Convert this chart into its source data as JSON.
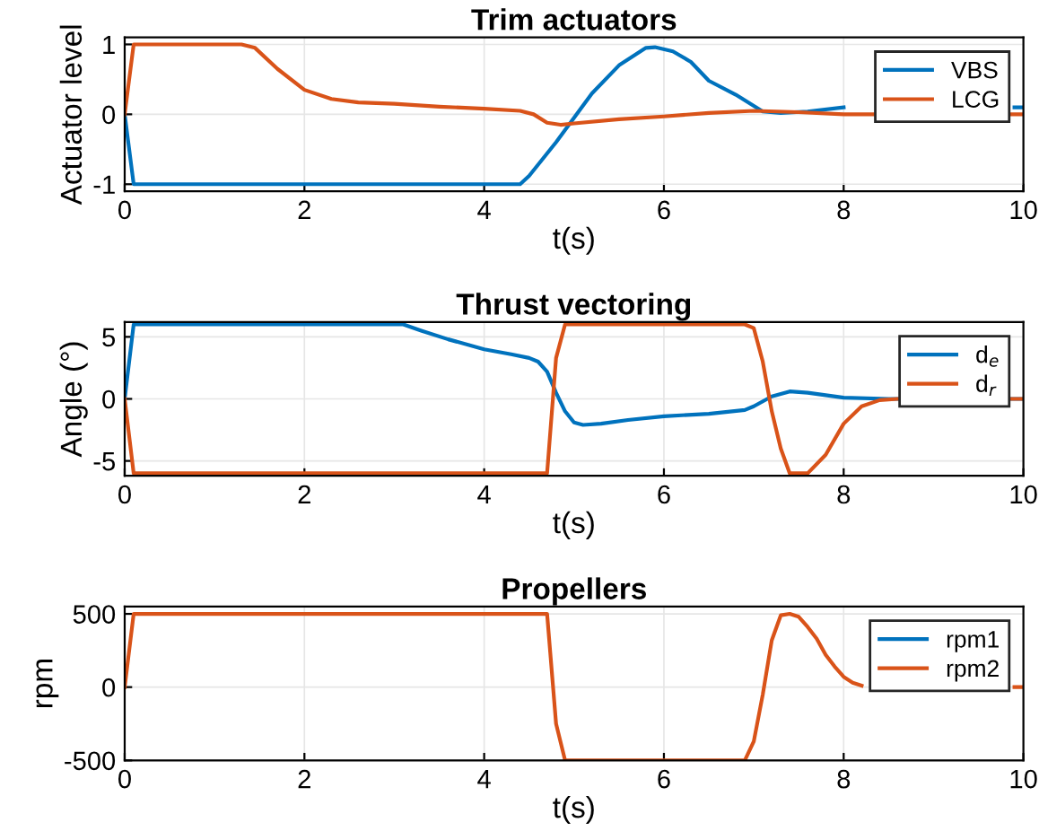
{
  "chart_data": [
    {
      "type": "line",
      "title": "Trim actuators",
      "xlabel": "t(s)",
      "ylabel": "Actuator level",
      "xlim": [
        0,
        10
      ],
      "ylim": [
        -1.1,
        1.1
      ],
      "xticks": [
        0,
        2,
        4,
        6,
        8,
        10
      ],
      "yticks": [
        -1,
        0,
        1
      ],
      "grid": true,
      "legend": "top right",
      "line_style": "solid",
      "series": [
        {
          "name": "VBS",
          "color": "#0072bd",
          "x": [
            0,
            0.1,
            4.4,
            4.5,
            4.8,
            5.0,
            5.2,
            5.5,
            5.8,
            5.9,
            6.1,
            6.3,
            6.5,
            6.8,
            7.1,
            7.3,
            7.6,
            8,
            8.5,
            9,
            9.5,
            9.9,
            10
          ],
          "values": [
            0,
            -1,
            -1,
            -0.88,
            -0.4,
            -0.05,
            0.3,
            0.7,
            0.95,
            0.96,
            0.9,
            0.75,
            0.48,
            0.28,
            0.04,
            0.02,
            0.04,
            0.1,
            null,
            null,
            null,
            0.1,
            0.1
          ]
        },
        {
          "name": "LCG",
          "color": "#d95319",
          "x": [
            0,
            0.1,
            1.3,
            1.45,
            1.7,
            2.0,
            2.3,
            2.6,
            3,
            3.5,
            4,
            4.4,
            4.55,
            4.7,
            4.85,
            5,
            5.5,
            6,
            6.5,
            7,
            7.5,
            8,
            10
          ],
          "values": [
            0,
            1,
            1,
            0.95,
            0.65,
            0.35,
            0.22,
            0.17,
            0.15,
            0.11,
            0.08,
            0.05,
            0.0,
            -0.12,
            -0.15,
            -0.13,
            -0.07,
            -0.03,
            0.02,
            0.05,
            0.03,
            0.0,
            0
          ]
        }
      ]
    },
    {
      "type": "line",
      "title": "Thrust vectoring",
      "xlabel": "t(s)",
      "ylabel": "Angle (°)",
      "xlim": [
        0,
        10
      ],
      "ylim": [
        -6.2,
        6.2
      ],
      "xticks": [
        0,
        2,
        4,
        6,
        8,
        10
      ],
      "yticks": [
        -5,
        0,
        5
      ],
      "grid": true,
      "legend": "top right",
      "line_style": "solid",
      "series": [
        {
          "name": "d$_{e}$",
          "color": "#0072bd",
          "x": [
            0,
            0.1,
            3.1,
            3.3,
            3.6,
            4.0,
            4.3,
            4.5,
            4.6,
            4.7,
            4.8,
            4.9,
            5.0,
            5.1,
            5.3,
            5.6,
            6,
            6.5,
            6.9,
            7.0,
            7.2,
            7.4,
            7.6,
            8.0,
            8.5,
            10
          ],
          "values": [
            0,
            6,
            6,
            5.5,
            4.8,
            4.0,
            3.6,
            3.3,
            3.0,
            2.2,
            0.5,
            -1,
            -1.9,
            -2.1,
            -2.0,
            -1.7,
            -1.4,
            -1.2,
            -0.9,
            -0.6,
            0.2,
            0.6,
            0.5,
            0.1,
            0,
            0
          ]
        },
        {
          "name": "d$_{r}$",
          "color": "#d95319",
          "x": [
            0,
            0.1,
            4.7,
            4.8,
            4.9,
            6.9,
            7.0,
            7.1,
            7.2,
            7.3,
            7.4,
            7.6,
            7.8,
            8.0,
            8.2,
            8.4,
            8.6,
            10
          ],
          "values": [
            0,
            -6,
            -6,
            3.3,
            6,
            6,
            5.7,
            3,
            -1,
            -4,
            -6,
            -6,
            -4.5,
            -2,
            -0.6,
            -0.1,
            0,
            0
          ]
        }
      ]
    },
    {
      "type": "line",
      "title": "Propellers",
      "xlabel": "t(s)",
      "ylabel": "rpm",
      "xlim": [
        0,
        10
      ],
      "ylim": [
        -500,
        550
      ],
      "xticks": [
        0,
        2,
        4,
        6,
        8,
        10
      ],
      "yticks": [
        -500,
        0,
        500
      ],
      "grid": true,
      "legend": "top right",
      "line_style": "solid",
      "series": [
        {
          "name": "rpm1",
          "color": "#0072bd"
        },
        {
          "name": "rpm2",
          "color": "#d95319",
          "x": [
            0,
            0.1,
            4.7,
            4.8,
            4.9,
            6.9,
            7.0,
            7.1,
            7.2,
            7.3,
            7.4,
            7.5,
            7.6,
            7.7,
            7.8,
            7.9,
            8.0,
            8.1,
            8.2,
            8.4,
            9.9,
            10
          ],
          "values": [
            0,
            500,
            500,
            -250,
            -500,
            -500,
            -370,
            -50,
            320,
            490,
            500,
            480,
            410,
            330,
            220,
            140,
            70,
            30,
            10,
            null,
            0,
            0
          ]
        }
      ]
    }
  ]
}
